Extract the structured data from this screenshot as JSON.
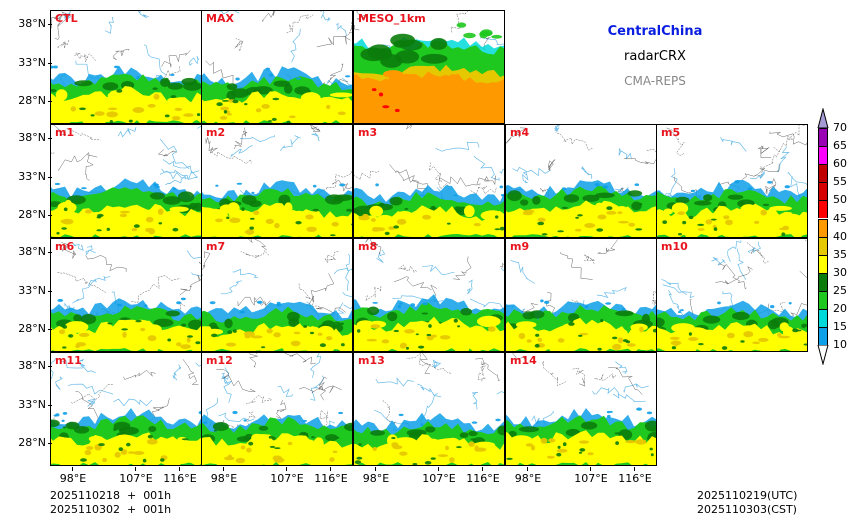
{
  "titles": {
    "region": "CentralChina",
    "product": "radarCRX",
    "system": "CMA-REPS"
  },
  "panels": [
    {
      "label": "CTL"
    },
    {
      "label": "MAX"
    },
    {
      "label": "MESO_1km"
    },
    {
      "label": "m1"
    },
    {
      "label": "m2"
    },
    {
      "label": "m3"
    },
    {
      "label": "m4"
    },
    {
      "label": "m5"
    },
    {
      "label": "m6"
    },
    {
      "label": "m7"
    },
    {
      "label": "m8"
    },
    {
      "label": "m9"
    },
    {
      "label": "m10"
    },
    {
      "label": "m11"
    },
    {
      "label": "m12"
    },
    {
      "label": "m13"
    },
    {
      "label": "m14"
    }
  ],
  "axes": {
    "lat_ticks": [
      "38°N",
      "33°N",
      "28°N"
    ],
    "lon_ticks": [
      "98°E",
      "107°E",
      "116°E"
    ]
  },
  "colorbar": {
    "levels": [
      "10",
      "15",
      "20",
      "25",
      "30",
      "35",
      "40",
      "45",
      "50",
      "55",
      "60",
      "65",
      "70"
    ],
    "colors": [
      "#0d9fe8",
      "#00d9d9",
      "#1ec81e",
      "#0b7c0b",
      "#ffff00",
      "#e6c800",
      "#ff9900",
      "#ff0000",
      "#d60000",
      "#c00000",
      "#ff00ff",
      "#9a00b4",
      "#a59ad4"
    ]
  },
  "footer": {
    "init_utc": "2025110218  +  001h",
    "init_cst": "2025110302  +  001h",
    "valid_utc": "2025110219(UTC)",
    "valid_cst": "2025110303(CST)"
  }
}
